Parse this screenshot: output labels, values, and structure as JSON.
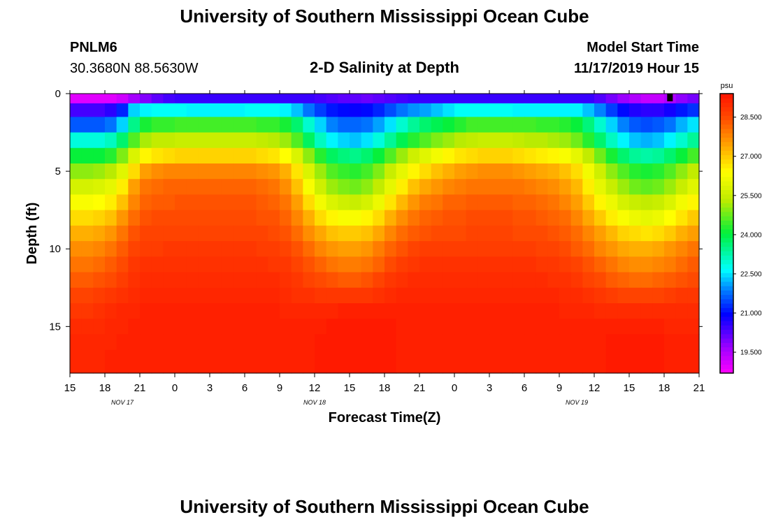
{
  "header": {
    "title_top": "University of Southern Mississippi Ocean Cube",
    "station_id": "PNLM6",
    "station_coords": "30.3680N 88.5630W",
    "plot_title": "2-D Salinity at Depth",
    "model_start_label": "Model Start Time",
    "model_start_value": "11/17/2019 Hour 15",
    "title_bottom": "University of Southern Mississippi Ocean Cube"
  },
  "chart_data": {
    "type": "heatmap",
    "title": "2-D Salinity at Depth",
    "xlabel": "Forecast Time(Z)",
    "ylabel": "Depth (ft)",
    "xlim": [
      0,
      54
    ],
    "ylim": [
      0,
      18
    ],
    "x_ticks": [
      {
        "v": 0,
        "label": "15"
      },
      {
        "v": 3,
        "label": "18"
      },
      {
        "v": 6,
        "label": "21"
      },
      {
        "v": 9,
        "label": "0"
      },
      {
        "v": 12,
        "label": "3"
      },
      {
        "v": 15,
        "label": "6"
      },
      {
        "v": 18,
        "label": "9"
      },
      {
        "v": 21,
        "label": "12"
      },
      {
        "v": 24,
        "label": "15"
      },
      {
        "v": 27,
        "label": "18"
      },
      {
        "v": 30,
        "label": "21"
      },
      {
        "v": 33,
        "label": "0"
      },
      {
        "v": 36,
        "label": "3"
      },
      {
        "v": 39,
        "label": "6"
      },
      {
        "v": 42,
        "label": "9"
      },
      {
        "v": 45,
        "label": "12"
      },
      {
        "v": 48,
        "label": "15"
      },
      {
        "v": 51,
        "label": "18"
      },
      {
        "v": 54,
        "label": "21"
      }
    ],
    "date_labels": [
      {
        "v": 4.5,
        "label": "NOV 17"
      },
      {
        "v": 21,
        "label": "NOV 18"
      },
      {
        "v": 43.5,
        "label": "NOV 19"
      }
    ],
    "y_ticks": [
      {
        "v": 0,
        "label": "0"
      },
      {
        "v": 5,
        "label": "5"
      },
      {
        "v": 10,
        "label": "10"
      },
      {
        "v": 15,
        "label": "15"
      }
    ],
    "colorbar": {
      "unit": "psu",
      "min": 18.7,
      "max": 29.4,
      "ticks": [
        {
          "v": 19.5,
          "label": "19.500"
        },
        {
          "v": 21.0,
          "label": "21.000"
        },
        {
          "v": 22.5,
          "label": "22.500"
        },
        {
          "v": 24.0,
          "label": "24.000"
        },
        {
          "v": 25.5,
          "label": "25.500"
        },
        {
          "v": 27.0,
          "label": "27.000"
        },
        {
          "v": 28.5,
          "label": "28.500"
        }
      ]
    },
    "columns": 54,
    "depth_levels": [
      0.25,
      1.0,
      2.0,
      3.0,
      4.0,
      5.0,
      6.0,
      7.0,
      8.0,
      9.0,
      10.0,
      11.0,
      12.0,
      13.0,
      14.0,
      15.0,
      16.0,
      17.0
    ],
    "salinity_psu": [
      [
        19.0,
        19.0,
        19.0,
        19.0,
        19.2,
        19.6,
        19.9,
        20.2,
        20.4,
        20.5,
        20.5,
        20.5,
        20.5,
        20.5,
        20.5,
        20.5,
        20.5,
        20.5,
        20.5,
        20.5,
        20.5,
        20.4,
        20.3,
        20.2,
        20.2,
        20.1,
        20.2,
        20.3,
        20.4,
        20.5,
        20.5,
        20.5,
        20.5,
        20.5,
        20.5,
        20.5,
        20.5,
        20.5,
        20.5,
        20.5,
        20.5,
        20.5,
        20.5,
        20.5,
        20.5,
        20.3,
        20.0,
        19.7,
        19.5,
        19.3,
        19.3,
        19.5,
        19.8,
        20.0
      ],
      [
        20.4,
        20.4,
        20.4,
        20.6,
        21.2,
        22.4,
        22.6,
        22.7,
        22.7,
        22.7,
        22.6,
        22.6,
        22.6,
        22.6,
        22.6,
        22.7,
        22.7,
        22.7,
        22.6,
        22.3,
        21.8,
        21.4,
        21.1,
        21.0,
        20.9,
        21.0,
        21.2,
        21.5,
        21.8,
        22.0,
        22.1,
        22.3,
        22.5,
        22.7,
        22.7,
        22.7,
        22.7,
        22.7,
        22.6,
        22.6,
        22.6,
        22.6,
        22.6,
        22.6,
        22.3,
        21.9,
        21.4,
        21.0,
        20.7,
        20.6,
        20.6,
        20.8,
        21.1,
        21.3
      ],
      [
        21.6,
        21.6,
        21.6,
        21.8,
        22.4,
        23.5,
        24.2,
        24.4,
        24.4,
        24.5,
        24.5,
        24.5,
        24.5,
        24.5,
        24.5,
        24.5,
        24.4,
        24.4,
        24.2,
        23.7,
        23.0,
        22.4,
        21.9,
        21.7,
        21.7,
        21.8,
        22.1,
        22.5,
        23.0,
        23.4,
        23.7,
        23.9,
        24.1,
        24.3,
        24.5,
        24.5,
        24.5,
        24.5,
        24.5,
        24.5,
        24.4,
        24.4,
        24.3,
        24.1,
        23.6,
        23.0,
        22.4,
        21.9,
        21.6,
        21.5,
        21.6,
        21.8,
        22.2,
        22.5
      ],
      [
        22.9,
        22.9,
        22.9,
        23.1,
        23.7,
        24.6,
        25.2,
        25.4,
        25.4,
        25.5,
        25.5,
        25.5,
        25.5,
        25.5,
        25.5,
        25.5,
        25.4,
        25.3,
        25.1,
        24.6,
        23.8,
        23.1,
        22.6,
        22.4,
        22.3,
        22.5,
        22.9,
        23.4,
        23.9,
        24.3,
        24.6,
        24.9,
        25.1,
        25.3,
        25.4,
        25.5,
        25.5,
        25.5,
        25.4,
        25.3,
        25.3,
        25.2,
        25.1,
        24.8,
        24.3,
        23.7,
        23.1,
        22.6,
        22.3,
        22.2,
        22.3,
        22.6,
        23.0,
        23.4
      ],
      [
        24.1,
        24.1,
        24.1,
        24.3,
        24.9,
        25.8,
        26.5,
        26.7,
        26.8,
        26.9,
        26.9,
        26.9,
        26.9,
        26.9,
        26.9,
        26.9,
        26.8,
        26.7,
        26.4,
        25.8,
        25.0,
        24.3,
        23.8,
        23.6,
        23.5,
        23.7,
        24.1,
        24.6,
        25.1,
        25.6,
        25.9,
        26.2,
        26.5,
        26.7,
        26.8,
        26.9,
        26.9,
        26.9,
        26.8,
        26.7,
        26.6,
        26.5,
        26.3,
        26.0,
        25.4,
        24.8,
        24.2,
        23.7,
        23.4,
        23.3,
        23.4,
        23.7,
        24.1,
        24.5
      ],
      [
        25.0,
        25.0,
        25.1,
        25.3,
        25.9,
        26.8,
        27.5,
        27.7,
        27.8,
        27.8,
        27.8,
        27.8,
        27.8,
        27.8,
        27.8,
        27.8,
        27.7,
        27.6,
        27.3,
        26.7,
        25.8,
        25.1,
        24.6,
        24.4,
        24.3,
        24.5,
        24.9,
        25.5,
        26.0,
        26.5,
        26.8,
        27.1,
        27.3,
        27.5,
        27.6,
        27.7,
        27.7,
        27.7,
        27.6,
        27.5,
        27.4,
        27.3,
        27.1,
        26.8,
        26.2,
        25.6,
        25.0,
        24.6,
        24.3,
        24.2,
        24.3,
        24.6,
        25.0,
        25.4
      ],
      [
        25.7,
        25.7,
        25.8,
        26.0,
        26.6,
        27.5,
        28.0,
        28.1,
        28.2,
        28.2,
        28.2,
        28.2,
        28.2,
        28.2,
        28.2,
        28.2,
        28.1,
        28.0,
        27.7,
        27.1,
        26.3,
        25.6,
        25.1,
        24.9,
        24.8,
        25.0,
        25.4,
        26.0,
        26.6,
        27.1,
        27.4,
        27.6,
        27.8,
        27.9,
        28.0,
        28.0,
        28.0,
        28.0,
        28.0,
        27.9,
        27.8,
        27.7,
        27.5,
        27.2,
        26.6,
        26.0,
        25.5,
        25.1,
        24.8,
        24.7,
        24.8,
        25.1,
        25.5,
        25.9
      ],
      [
        26.3,
        26.3,
        26.4,
        26.6,
        27.1,
        27.8,
        28.2,
        28.3,
        28.3,
        28.4,
        28.4,
        28.4,
        28.4,
        28.4,
        28.4,
        28.4,
        28.3,
        28.2,
        28.0,
        27.5,
        26.8,
        26.2,
        25.8,
        25.6,
        25.5,
        25.7,
        26.1,
        26.7,
        27.2,
        27.6,
        27.9,
        28.0,
        28.2,
        28.2,
        28.3,
        28.3,
        28.3,
        28.3,
        28.2,
        28.2,
        28.1,
        28.0,
        27.8,
        27.5,
        27.0,
        26.5,
        26.1,
        25.7,
        25.5,
        25.4,
        25.5,
        25.8,
        26.2,
        26.5
      ],
      [
        26.8,
        26.8,
        26.9,
        27.1,
        27.6,
        28.1,
        28.4,
        28.5,
        28.5,
        28.5,
        28.5,
        28.5,
        28.5,
        28.5,
        28.5,
        28.5,
        28.4,
        28.4,
        28.2,
        27.8,
        27.3,
        26.8,
        26.5,
        26.3,
        26.3,
        26.5,
        26.8,
        27.3,
        27.7,
        28.0,
        28.2,
        28.3,
        28.4,
        28.4,
        28.5,
        28.5,
        28.5,
        28.5,
        28.4,
        28.4,
        28.3,
        28.2,
        28.1,
        27.8,
        27.4,
        27.0,
        26.6,
        26.3,
        26.1,
        26.0,
        26.1,
        26.4,
        26.7,
        27.0
      ],
      [
        27.3,
        27.3,
        27.4,
        27.6,
        28.0,
        28.4,
        28.6,
        28.6,
        28.6,
        28.6,
        28.6,
        28.6,
        28.6,
        28.6,
        28.6,
        28.6,
        28.6,
        28.5,
        28.4,
        28.1,
        27.7,
        27.4,
        27.1,
        27.0,
        27.0,
        27.1,
        27.4,
        27.8,
        28.1,
        28.3,
        28.4,
        28.5,
        28.5,
        28.5,
        28.6,
        28.6,
        28.6,
        28.6,
        28.5,
        28.5,
        28.5,
        28.4,
        28.3,
        28.1,
        27.8,
        27.5,
        27.2,
        26.9,
        26.8,
        26.7,
        26.8,
        27.0,
        27.3,
        27.5
      ],
      [
        27.7,
        27.7,
        27.8,
        28.0,
        28.3,
        28.6,
        28.7,
        28.7,
        28.8,
        28.8,
        28.8,
        28.8,
        28.8,
        28.8,
        28.8,
        28.8,
        28.7,
        28.7,
        28.6,
        28.4,
        28.1,
        27.8,
        27.6,
        27.5,
        27.5,
        27.6,
        27.9,
        28.2,
        28.4,
        28.6,
        28.7,
        28.7,
        28.7,
        28.7,
        28.7,
        28.7,
        28.7,
        28.7,
        28.7,
        28.7,
        28.6,
        28.6,
        28.5,
        28.3,
        28.1,
        27.8,
        27.6,
        27.4,
        27.3,
        27.3,
        27.4,
        27.6,
        27.8,
        28.0
      ],
      [
        28.0,
        28.0,
        28.1,
        28.3,
        28.5,
        28.8,
        28.9,
        28.9,
        28.9,
        28.9,
        28.9,
        28.9,
        28.9,
        28.9,
        28.9,
        28.9,
        28.9,
        28.8,
        28.8,
        28.6,
        28.4,
        28.2,
        28.0,
        27.9,
        27.9,
        28.0,
        28.2,
        28.5,
        28.7,
        28.8,
        28.9,
        28.9,
        28.9,
        28.9,
        28.9,
        28.9,
        28.9,
        28.9,
        28.9,
        28.9,
        28.8,
        28.8,
        28.7,
        28.6,
        28.4,
        28.2,
        28.0,
        27.8,
        27.7,
        27.7,
        27.8,
        27.9,
        28.1,
        28.3
      ],
      [
        28.3,
        28.3,
        28.4,
        28.5,
        28.7,
        28.9,
        29.0,
        29.0,
        29.0,
        29.0,
        29.0,
        29.0,
        29.0,
        29.0,
        29.0,
        29.0,
        29.0,
        29.0,
        28.9,
        28.8,
        28.6,
        28.5,
        28.4,
        28.3,
        28.3,
        28.4,
        28.6,
        28.8,
        28.9,
        29.0,
        29.0,
        29.0,
        29.0,
        29.0,
        29.0,
        29.0,
        29.0,
        29.0,
        29.0,
        29.0,
        29.0,
        28.9,
        28.9,
        28.8,
        28.6,
        28.5,
        28.3,
        28.2,
        28.1,
        28.1,
        28.2,
        28.3,
        28.4,
        28.5
      ],
      [
        28.6,
        28.6,
        28.7,
        28.8,
        28.9,
        29.0,
        29.1,
        29.1,
        29.1,
        29.1,
        29.1,
        29.1,
        29.1,
        29.1,
        29.1,
        29.1,
        29.1,
        29.1,
        29.0,
        28.9,
        28.9,
        28.8,
        28.8,
        28.8,
        28.8,
        28.8,
        28.9,
        29.0,
        29.1,
        29.1,
        29.1,
        29.1,
        29.1,
        29.1,
        29.1,
        29.1,
        29.1,
        29.1,
        29.1,
        29.1,
        29.1,
        29.1,
        29.0,
        29.0,
        28.9,
        28.8,
        28.7,
        28.6,
        28.6,
        28.6,
        28.6,
        28.7,
        28.8,
        28.8
      ],
      [
        28.8,
        28.8,
        28.9,
        29.0,
        29.1,
        29.1,
        29.2,
        29.2,
        29.2,
        29.2,
        29.2,
        29.2,
        29.2,
        29.2,
        29.2,
        29.2,
        29.2,
        29.2,
        29.1,
        29.1,
        29.1,
        29.1,
        29.1,
        29.2,
        29.2,
        29.2,
        29.2,
        29.2,
        29.2,
        29.2,
        29.2,
        29.2,
        29.2,
        29.2,
        29.2,
        29.2,
        29.2,
        29.2,
        29.2,
        29.2,
        29.2,
        29.2,
        29.1,
        29.1,
        29.1,
        29.0,
        29.0,
        29.0,
        29.0,
        29.0,
        29.0,
        29.0,
        29.0,
        29.0
      ],
      [
        29.0,
        29.0,
        29.0,
        29.1,
        29.1,
        29.2,
        29.2,
        29.2,
        29.2,
        29.2,
        29.2,
        29.2,
        29.2,
        29.2,
        29.2,
        29.2,
        29.2,
        29.2,
        29.2,
        29.2,
        29.2,
        29.2,
        29.3,
        29.3,
        29.3,
        29.3,
        29.3,
        29.3,
        29.2,
        29.2,
        29.2,
        29.2,
        29.2,
        29.2,
        29.2,
        29.2,
        29.2,
        29.2,
        29.2,
        29.2,
        29.2,
        29.2,
        29.2,
        29.2,
        29.2,
        29.2,
        29.2,
        29.2,
        29.2,
        29.2,
        29.2,
        29.1,
        29.1,
        29.1
      ],
      [
        29.1,
        29.1,
        29.1,
        29.1,
        29.2,
        29.2,
        29.2,
        29.2,
        29.2,
        29.2,
        29.2,
        29.2,
        29.2,
        29.2,
        29.2,
        29.2,
        29.2,
        29.2,
        29.2,
        29.2,
        29.2,
        29.3,
        29.3,
        29.3,
        29.3,
        29.3,
        29.3,
        29.3,
        29.2,
        29.2,
        29.2,
        29.2,
        29.2,
        29.2,
        29.2,
        29.2,
        29.2,
        29.2,
        29.2,
        29.2,
        29.2,
        29.2,
        29.2,
        29.2,
        29.2,
        29.2,
        29.3,
        29.3,
        29.3,
        29.3,
        29.3,
        29.2,
        29.2,
        29.2
      ],
      [
        29.1,
        29.1,
        29.1,
        29.2,
        29.2,
        29.2,
        29.2,
        29.2,
        29.2,
        29.2,
        29.2,
        29.2,
        29.2,
        29.2,
        29.2,
        29.2,
        29.2,
        29.2,
        29.2,
        29.2,
        29.2,
        29.3,
        29.3,
        29.3,
        29.3,
        29.3,
        29.3,
        29.3,
        29.2,
        29.2,
        29.2,
        29.2,
        29.2,
        29.2,
        29.2,
        29.2,
        29.2,
        29.2,
        29.2,
        29.2,
        29.2,
        29.2,
        29.2,
        29.2,
        29.2,
        29.2,
        29.3,
        29.3,
        29.3,
        29.3,
        29.3,
        29.2,
        29.2,
        29.2
      ]
    ],
    "marker": {
      "x": 51.5,
      "depth": 0.25,
      "color": "#000000"
    }
  },
  "colors": {
    "background": "#ffffff",
    "axis": "#000000"
  }
}
